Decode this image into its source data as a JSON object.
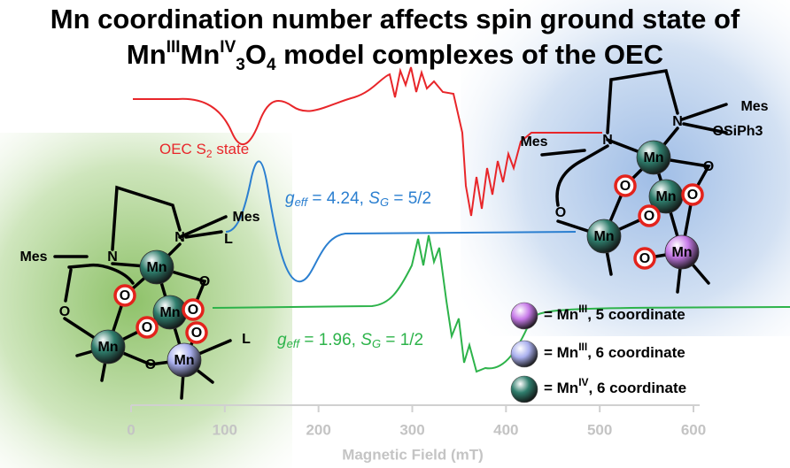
{
  "title_line1": "Mn coordination number affects spin ground state of",
  "title_line2": [
    "Mn",
    "III",
    "Mn",
    "IV",
    "3",
    "O",
    "4",
    " model complexes of the OEC"
  ],
  "spectra_labels": {
    "oec": [
      "OEC S",
      "2",
      " state"
    ],
    "high": [
      "g",
      "eff",
      " = 4.24, ",
      "S",
      "G",
      " = 5/2"
    ],
    "low": [
      "g",
      "eff",
      " = 1.96, ",
      "S",
      "G",
      " = 1/2"
    ]
  },
  "axis": {
    "label": "Magnetic Field (mT)",
    "xlim": [
      0,
      600
    ],
    "xticks": [
      0,
      100,
      200,
      300,
      400,
      500,
      600
    ]
  },
  "legend": [
    {
      "parts": [
        "= Mn",
        "III",
        ", 5 coordinate"
      ],
      "color": "#c77ae8"
    },
    {
      "parts": [
        "= Mn",
        "III",
        ", 6 coordinate"
      ],
      "color": "#aab0ee"
    },
    {
      "parts": [
        "= Mn",
        "IV",
        ", 6 coordinate"
      ],
      "color": "#2f7d6c"
    }
  ],
  "left_complex": {
    "labels": [
      "Mes",
      "N",
      "N",
      "Mes",
      "L",
      "Mn",
      "O",
      "O",
      "Mn",
      "O",
      "O",
      "O",
      "O",
      "Mn",
      "O",
      "Mn",
      "L"
    ]
  },
  "right_complex": {
    "labels": [
      "Mes",
      "N",
      "OSiPh3",
      "Mes",
      "N",
      "Mn",
      "O",
      "O",
      "Mn",
      "O",
      "O",
      "O",
      "Mn",
      "O",
      "Mn"
    ]
  }
}
